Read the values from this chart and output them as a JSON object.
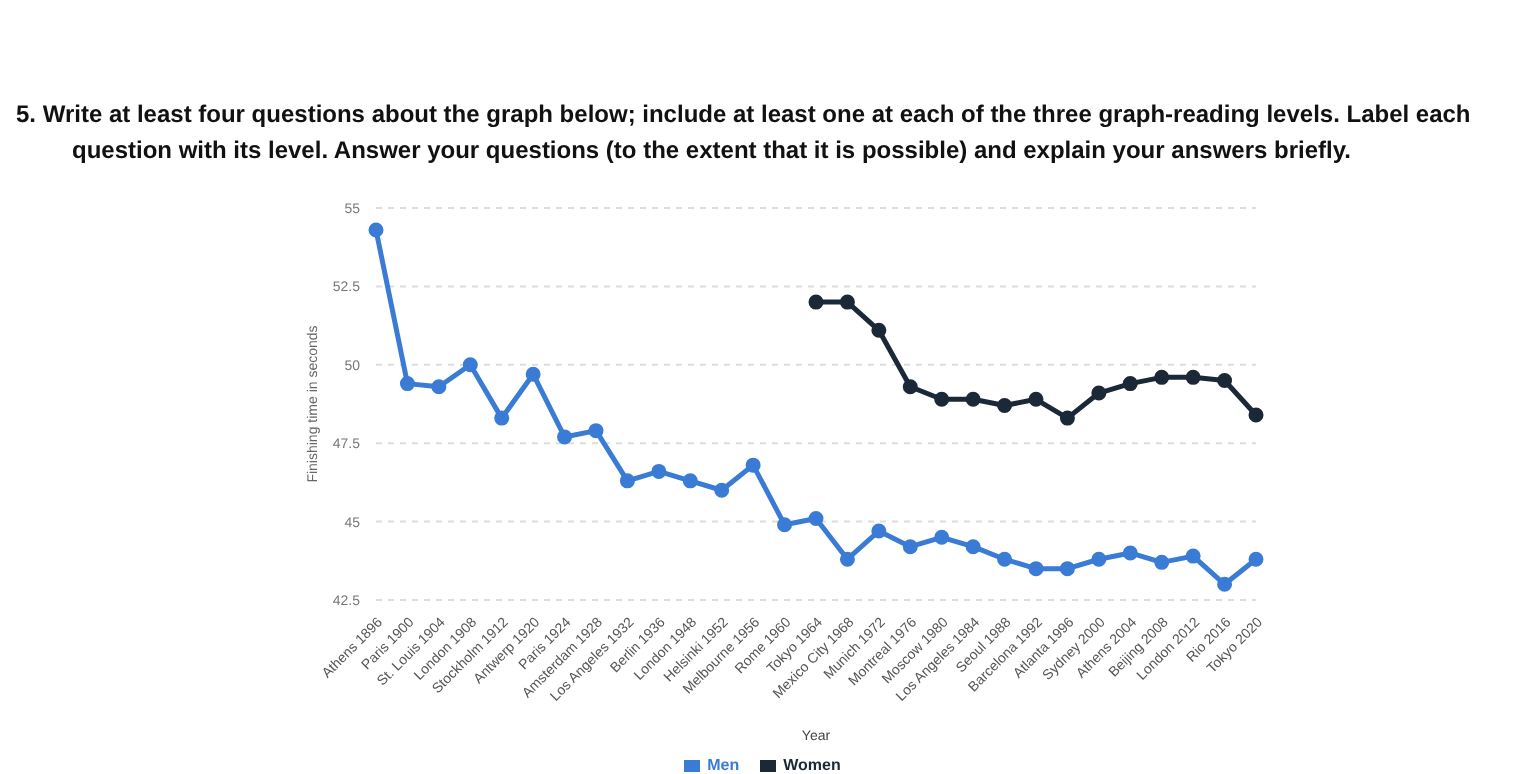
{
  "chart_data": {
    "type": "line",
    "title": "5.  Write at least four questions about the graph below; include at least one at each of the three graph-reading levels. Label each question with its level. Answer your questions (to the extent that it is possible) and explain your answers briefly.",
    "xlabel": "Year",
    "ylabel": "Finishing time in seconds",
    "categories": [
      "Athens 1896",
      "Paris 1900",
      "St. Louis 1904",
      "London 1908",
      "Stockholm 1912",
      "Antwerp 1920",
      "Paris 1924",
      "Amsterdam 1928",
      "Los Angeles 1932",
      "Berlin 1936",
      "London 1948",
      "Helsinki 1952",
      "Melbourne 1956",
      "Rome 1960",
      "Tokyo 1964",
      "Mexico City 1968",
      "Munich 1972",
      "Montreal 1976",
      "Moscow 1980",
      "Los Angeles 1984",
      "Seoul 1988",
      "Barcelona 1992",
      "Atlanta 1996",
      "Sydney 2000",
      "Athens 2004",
      "Beijing 2008",
      "London 2012",
      "Rio 2016",
      "Tokyo 2020"
    ],
    "series": [
      {
        "name": "Men",
        "color": "#3a7bd5",
        "values": [
          54.3,
          49.4,
          49.3,
          50.0,
          48.3,
          49.7,
          47.7,
          47.9,
          46.3,
          46.6,
          46.3,
          46.0,
          46.8,
          44.9,
          45.1,
          43.8,
          44.7,
          44.2,
          44.5,
          44.2,
          43.8,
          43.5,
          43.5,
          43.8,
          44.0,
          43.7,
          43.9,
          43.0,
          43.8
        ]
      },
      {
        "name": "Women",
        "color": "#1b2838",
        "values": [
          null,
          null,
          null,
          null,
          null,
          null,
          null,
          null,
          null,
          null,
          null,
          null,
          null,
          null,
          52.0,
          52.0,
          51.1,
          49.3,
          48.9,
          48.9,
          48.7,
          48.9,
          48.3,
          49.1,
          49.4,
          49.6,
          49.6,
          49.5,
          48.4
        ]
      }
    ],
    "ylim": [
      42.5,
      55
    ],
    "yticks": [
      42.5,
      45,
      47.5,
      50,
      52.5,
      55
    ],
    "grid": "y",
    "legend": "bottom",
    "marker": "circle",
    "line_style": "solid"
  }
}
